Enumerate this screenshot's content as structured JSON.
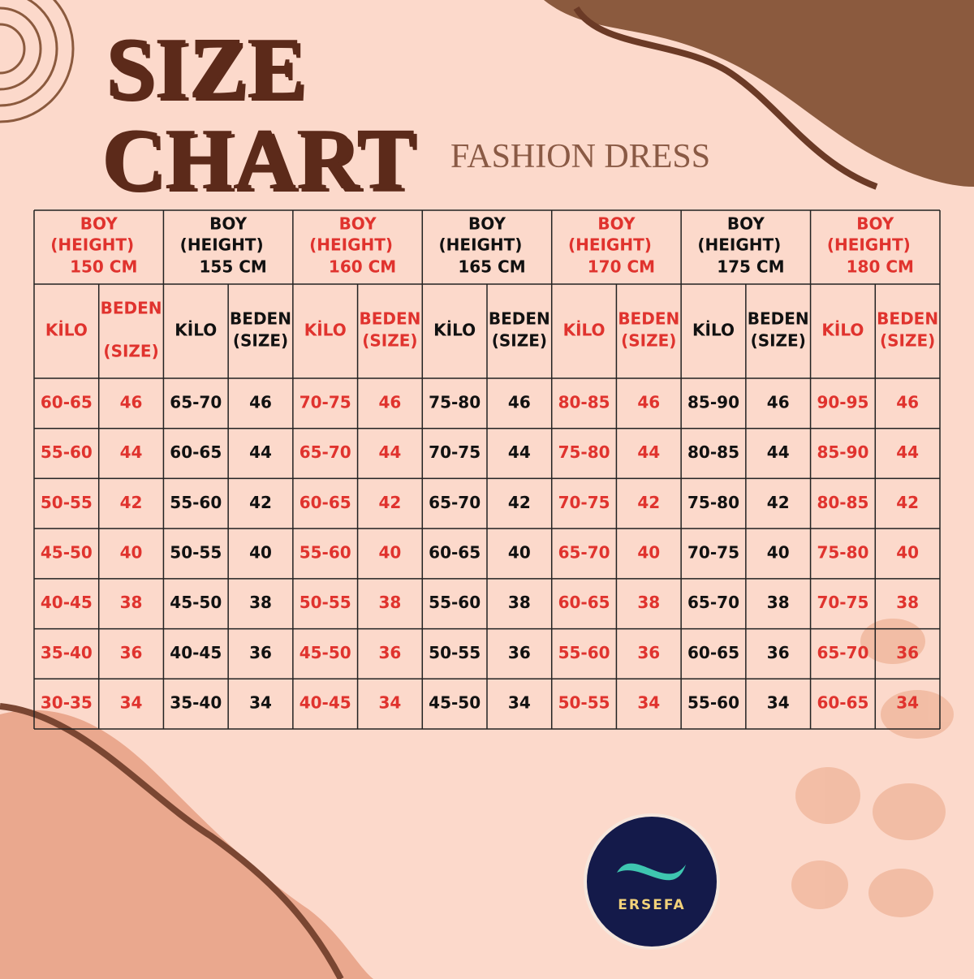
{
  "header": {
    "title_line1": "SIZE",
    "title_line2": "CHART",
    "subtitle": "FASHION DRESS"
  },
  "table": {
    "groups": [
      {
        "boy": "BOY",
        "height": "(HEIGHT)",
        "cm": "150 CM",
        "kilo": "KİLO",
        "beden": "BEDEN",
        "size": "(SIZE)"
      },
      {
        "boy": "BOY",
        "height": "(HEIGHT)",
        "cm": "155 CM",
        "kilo": "KİLO",
        "beden": "BEDEN",
        "size": "(SIZE)"
      },
      {
        "boy": "BOY",
        "height": "(HEIGHT)",
        "cm": "160 CM",
        "kilo": "KİLO",
        "beden": "BEDEN",
        "size": "(SIZE)"
      },
      {
        "boy": "BOY",
        "height": "(HEIGHT)",
        "cm": "165 CM",
        "kilo": "KİLO",
        "beden": "BEDEN",
        "size": "(SIZE)"
      },
      {
        "boy": "BOY",
        "height": "(HEIGHT)",
        "cm": "170 CM",
        "kilo": "KİLO",
        "beden": "BEDEN",
        "size": "(SIZE)"
      },
      {
        "boy": "BOY",
        "height": "(HEIGHT)",
        "cm": "175 CM",
        "kilo": "KİLO",
        "beden": "BEDEN",
        "size": "(SIZE)"
      },
      {
        "boy": "BOY",
        "height": "(HEIGHT)",
        "cm": "180 CM",
        "kilo": "KİLO",
        "beden": "BEDEN",
        "size": "(SIZE)"
      }
    ],
    "rows": [
      [
        "60-65",
        46,
        "65-70",
        46,
        "70-75",
        46,
        "75-80",
        46,
        "80-85",
        46,
        "85-90",
        46,
        "90-95",
        46
      ],
      [
        "55-60",
        44,
        "60-65",
        44,
        "65-70",
        44,
        "70-75",
        44,
        "75-80",
        44,
        "80-85",
        44,
        "85-90",
        44
      ],
      [
        "50-55",
        42,
        "55-60",
        42,
        "60-65",
        42,
        "65-70",
        42,
        "70-75",
        42,
        "75-80",
        42,
        "80-85",
        42
      ],
      [
        "45-50",
        40,
        "50-55",
        40,
        "55-60",
        40,
        "60-65",
        40,
        "65-70",
        40,
        "70-75",
        40,
        "75-80",
        40
      ],
      [
        "40-45",
        38,
        "45-50",
        38,
        "50-55",
        38,
        "55-60",
        38,
        "60-65",
        38,
        "65-70",
        38,
        "70-75",
        38
      ],
      [
        "35-40",
        36,
        "40-45",
        36,
        "45-50",
        36,
        "50-55",
        36,
        "55-60",
        36,
        "60-65",
        36,
        "65-70",
        36
      ],
      [
        "30-35",
        34,
        "35-40",
        34,
        "40-45",
        34,
        "45-50",
        34,
        "50-55",
        34,
        "55-60",
        34,
        "60-65",
        34
      ]
    ]
  },
  "logo": {
    "text": "ERSEFA"
  }
}
